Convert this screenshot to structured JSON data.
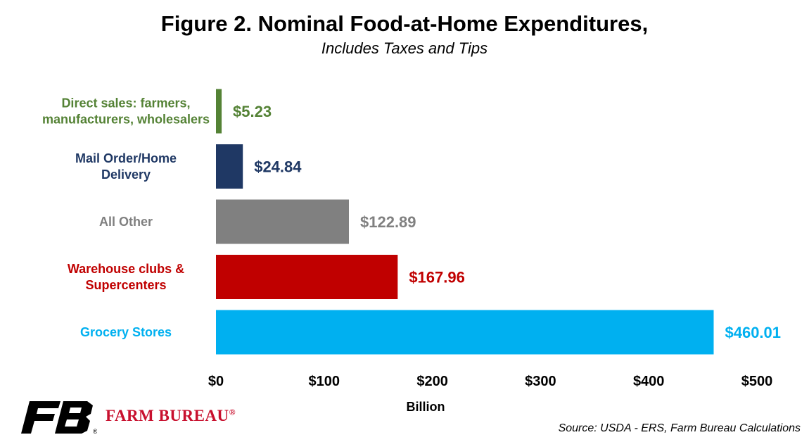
{
  "title": "Figure 2. Nominal Food-at-Home Expenditures,",
  "subtitle": "Includes Taxes and Tips",
  "source": "Source: USDA - ERS, Farm Bureau Calculations",
  "logo": {
    "icon": "farm-bureau-fb-logo",
    "text": "FARM BUREAU",
    "registered": "®",
    "color": "#c8102e"
  },
  "chart_data": {
    "type": "bar",
    "orientation": "horizontal",
    "categories": [
      [
        "Direct sales: farmers,",
        "manufacturers, wholesalers"
      ],
      [
        "Mail Order/Home",
        "Delivery"
      ],
      [
        "All Other"
      ],
      [
        "Warehouse clubs &",
        "Supercenters"
      ],
      [
        "Grocery Stores"
      ]
    ],
    "values": [
      5.23,
      24.84,
      122.89,
      167.96,
      460.01
    ],
    "value_labels": [
      "$5.23",
      "$24.84",
      "$122.89",
      "$167.96",
      "$460.01"
    ],
    "colors": [
      "#548235",
      "#1f3864",
      "#808080",
      "#c00000",
      "#00b0f0"
    ],
    "xlabel": "Billion",
    "ylabel": "",
    "xlim": [
      0,
      500
    ],
    "xticks": [
      0,
      100,
      200,
      300,
      400,
      500
    ],
    "xtick_labels": [
      "$0",
      "$100",
      "$200",
      "$300",
      "$400",
      "$500"
    ],
    "grid": false,
    "legend": "none"
  }
}
